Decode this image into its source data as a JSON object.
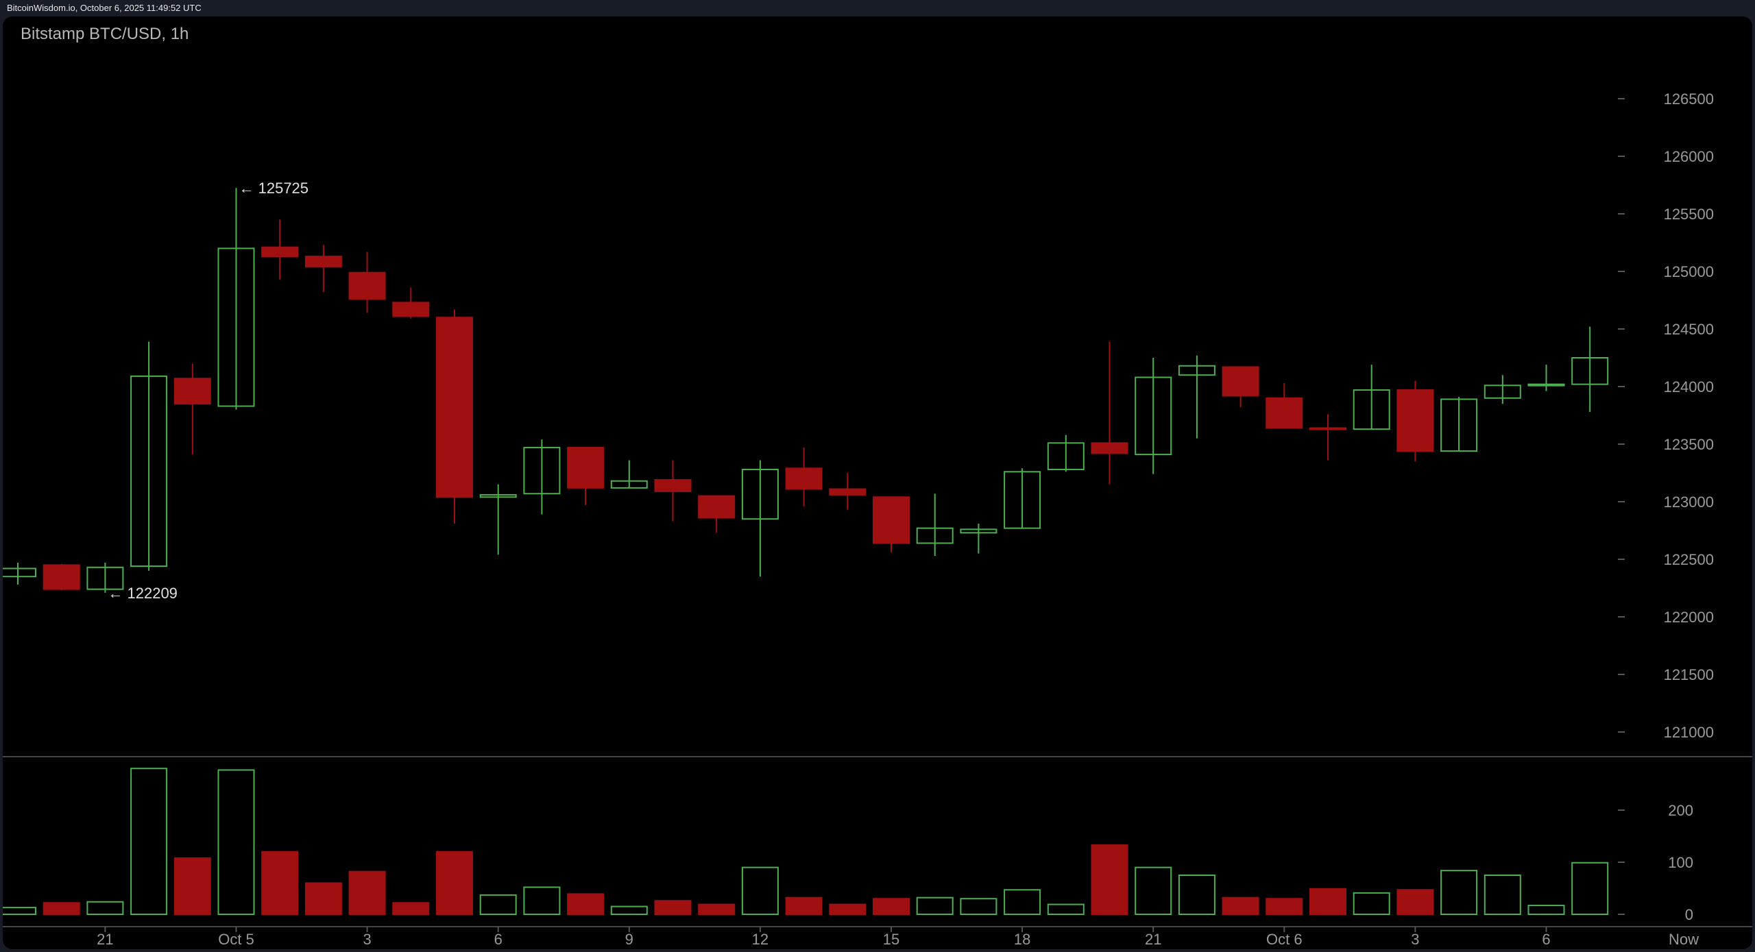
{
  "header": {
    "source": "BitcoinWisdom.io, October 6, 2025 11:49:52 UTC",
    "title": "Bitstamp BTC/USD, 1h"
  },
  "colors": {
    "up": "#4caf50",
    "down": "#a01010",
    "background": "#000000",
    "grid": "#3a3a3a"
  },
  "chart_data": [
    {
      "type": "candlestick",
      "title": "Bitstamp BTC/USD, 1h",
      "ylim": [
        120800,
        126700
      ],
      "yticks": [
        121000,
        121500,
        122000,
        122500,
        123000,
        123500,
        124000,
        124500,
        125000,
        125500,
        126000,
        126500
      ],
      "xtick_labels": [
        {
          "index": 2,
          "label": "21"
        },
        {
          "index": 5,
          "label": "Oct 5"
        },
        {
          "index": 8,
          "label": "3"
        },
        {
          "index": 11,
          "label": "6"
        },
        {
          "index": 14,
          "label": "9"
        },
        {
          "index": 17,
          "label": "12"
        },
        {
          "index": 20,
          "label": "15"
        },
        {
          "index": 23,
          "label": "18"
        },
        {
          "index": 26,
          "label": "21"
        },
        {
          "index": 29,
          "label": "Oct 6"
        },
        {
          "index": 32,
          "label": "3"
        },
        {
          "index": 35,
          "label": "6"
        }
      ],
      "now_label": "Now",
      "annotations": [
        {
          "index": 5,
          "value": 125725,
          "text": "← 125725"
        },
        {
          "index": 2,
          "value": 122209,
          "text": "← 122209"
        }
      ],
      "ohlc": [
        [
          122350,
          122470,
          122280,
          122420
        ],
        [
          122450,
          122460,
          122230,
          122240
        ],
        [
          122240,
          122470,
          122209,
          122430
        ],
        [
          122440,
          124390,
          122400,
          124090
        ],
        [
          124070,
          124200,
          123410,
          123850
        ],
        [
          123830,
          125725,
          123800,
          125200
        ],
        [
          125210,
          125450,
          124930,
          125130
        ],
        [
          125130,
          125230,
          124820,
          125040
        ],
        [
          124990,
          125170,
          124640,
          124760
        ],
        [
          124730,
          124860,
          124590,
          124610
        ],
        [
          124600,
          124670,
          122810,
          123040
        ],
        [
          123040,
          123150,
          122540,
          123060
        ],
        [
          123070,
          123540,
          122890,
          123470
        ],
        [
          123470,
          123470,
          122970,
          123120
        ],
        [
          123120,
          123360,
          123120,
          123180
        ],
        [
          123190,
          123360,
          122830,
          123090
        ],
        [
          123050,
          123050,
          122730,
          122860
        ],
        [
          122850,
          123360,
          122350,
          123280
        ],
        [
          123290,
          123470,
          122960,
          123110
        ],
        [
          123110,
          123250,
          122930,
          123060
        ],
        [
          123040,
          123040,
          122560,
          122640
        ],
        [
          122640,
          123070,
          122530,
          122770
        ],
        [
          122730,
          122810,
          122550,
          122760
        ],
        [
          122770,
          123290,
          122770,
          123260
        ],
        [
          123280,
          123580,
          123260,
          123510
        ],
        [
          123510,
          124390,
          123150,
          123420
        ],
        [
          123410,
          124250,
          123240,
          124080
        ],
        [
          124100,
          124270,
          123550,
          124180
        ],
        [
          124170,
          124170,
          123820,
          123920
        ],
        [
          123900,
          124030,
          123640,
          123640
        ],
        [
          123640,
          123760,
          123360,
          123630
        ],
        [
          123630,
          124190,
          123630,
          123970
        ],
        [
          123970,
          124050,
          123350,
          123440
        ],
        [
          123440,
          123910,
          123440,
          123890
        ],
        [
          123900,
          124100,
          123850,
          124010
        ],
        [
          124010,
          124190,
          123960,
          124020
        ],
        [
          124020,
          124520,
          123780,
          124250
        ]
      ]
    },
    {
      "type": "bar",
      "title": "",
      "ylim": [
        0,
        300
      ],
      "yticks": [
        0,
        100,
        200
      ],
      "values": [
        13,
        22,
        24,
        280,
        108,
        277,
        120,
        60,
        82,
        22,
        120,
        37,
        52,
        39,
        15,
        26,
        19,
        90,
        32,
        19,
        30,
        32,
        30,
        47,
        19,
        133,
        90,
        75,
        32,
        30,
        49,
        41,
        47,
        84,
        75,
        17,
        99
      ]
    }
  ]
}
